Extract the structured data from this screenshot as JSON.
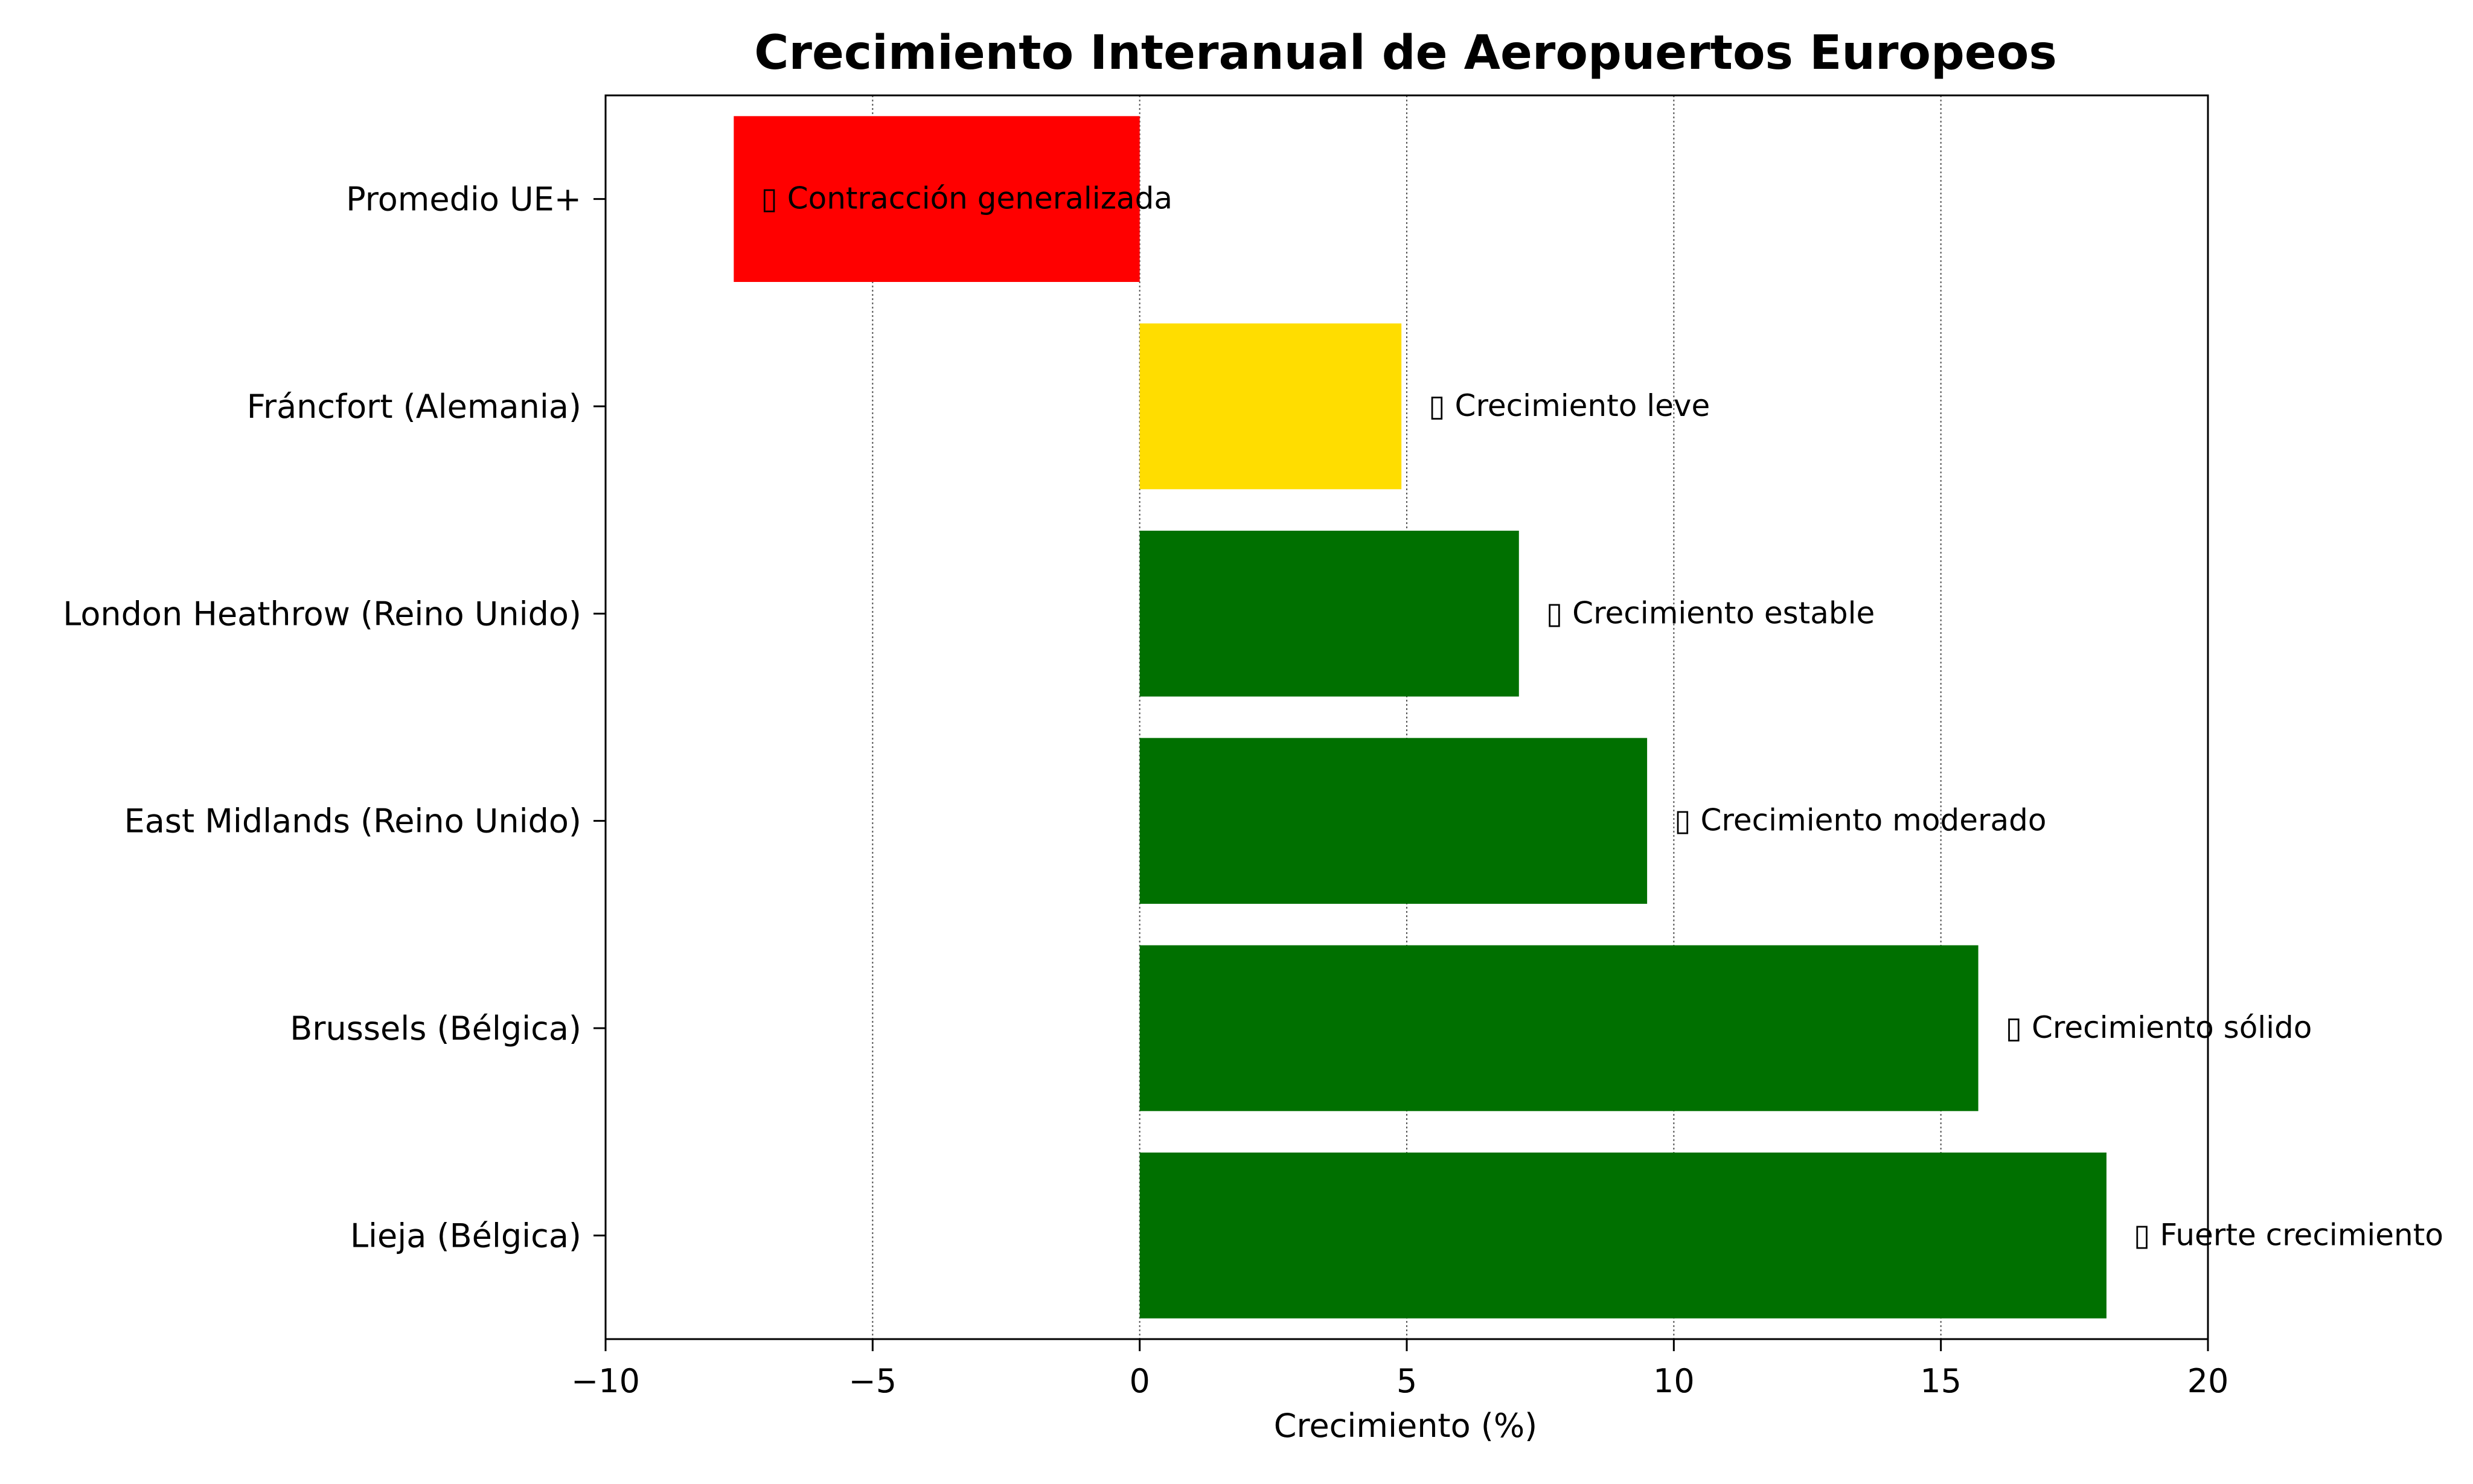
{
  "chart_data": {
    "type": "bar",
    "orientation": "horizontal",
    "title": "Crecimiento Interanual de Aeropuertos Europeos",
    "xlabel": "Crecimiento (%)",
    "ylabel": "",
    "xlim": [
      -10,
      20
    ],
    "xticks": [
      -10,
      -5,
      0,
      5,
      10,
      15,
      20
    ],
    "xtick_labels": [
      "−10",
      "−5",
      "0",
      "5",
      "10",
      "15",
      "20"
    ],
    "grid": "x-dotted",
    "categories": [
      "Promedio UE+",
      "Fráncfort (Alemania)",
      "London Heathrow (Reino Unido)",
      "East Midlands (Reino Unido)",
      "Brussels (Bélgica)",
      "Lieja (Bélgica)"
    ],
    "values": [
      -7.6,
      4.9,
      7.1,
      9.5,
      15.7,
      18.1
    ],
    "colors": [
      "#ff0000",
      "#ffdd00",
      "#007000",
      "#007000",
      "#007000",
      "#007000"
    ],
    "annotations": [
      "▯ Contracción generalizada",
      "▯ Crecimiento leve",
      "▯ Crecimiento estable",
      "▯ Crecimiento moderado",
      "▯ Crecimiento sólido",
      "▯ Fuerte crecimiento"
    ]
  }
}
